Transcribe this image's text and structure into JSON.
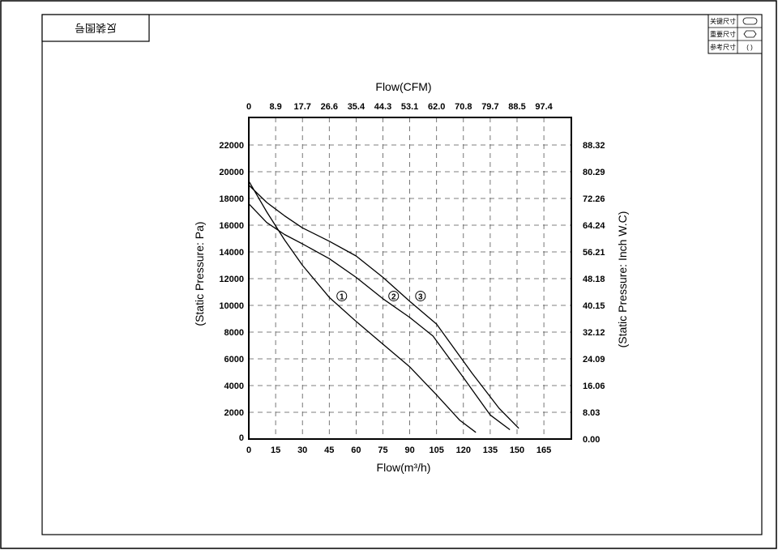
{
  "drawing_stamp": "反装图号",
  "title_block": [
    {
      "label": "关键尺寸",
      "symbol": "oval"
    },
    {
      "label": "重要尺寸",
      "symbol": "hexagon"
    },
    {
      "label": "参考尺寸",
      "symbol": "( )"
    }
  ],
  "chart_data": {
    "type": "line",
    "xlabel": "Flow(m³/h)",
    "x2label": "Flow(CFM)",
    "ylabel": "(Static Pressure: Pa)",
    "y2label": "(Static Pressure: Inch W.C)",
    "xlim": [
      0,
      180
    ],
    "ylim": [
      0,
      22000
    ],
    "grid": true,
    "x_ticks": [
      "0",
      "15",
      "30",
      "45",
      "60",
      "75",
      "90",
      "105",
      "120",
      "135",
      "150",
      "165"
    ],
    "x2_ticks": [
      "0",
      "8.9",
      "17.7",
      "26.6",
      "35.4",
      "44.3",
      "53.1",
      "62.0",
      "70.8",
      "79.7",
      "88.5",
      "97.4"
    ],
    "y_ticks": [
      "0",
      "2000",
      "4000",
      "6000",
      "8000",
      "10000",
      "12000",
      "14000",
      "16000",
      "18000",
      "20000",
      "22000"
    ],
    "y2_ticks": [
      "0.00",
      "8.03",
      "16.06",
      "24.09",
      "32.12",
      "40.15",
      "48.18",
      "56.21",
      "64.24",
      "72.26",
      "80.29",
      "88.32"
    ],
    "series": [
      {
        "name": "①",
        "label_at": [
          52,
          10700
        ],
        "x": [
          0,
          10,
          20,
          30,
          45,
          60,
          75,
          90,
          105,
          118,
          127
        ],
        "y": [
          19300,
          17000,
          14900,
          13000,
          10600,
          8800,
          7100,
          5400,
          3300,
          1400,
          500
        ]
      },
      {
        "name": "②",
        "label_at": [
          81,
          10700
        ],
        "x": [
          0,
          10,
          20,
          30,
          45,
          60,
          75,
          90,
          103,
          120,
          135,
          146
        ],
        "y": [
          17600,
          16200,
          15300,
          14600,
          13500,
          12100,
          10500,
          9100,
          7700,
          4600,
          1800,
          700
        ]
      },
      {
        "name": "③",
        "label_at": [
          96,
          10700
        ],
        "x": [
          0,
          10,
          20,
          30,
          45,
          60,
          75,
          90,
          105,
          125,
          140,
          151
        ],
        "y": [
          19000,
          17700,
          16700,
          15800,
          14800,
          13700,
          12100,
          10300,
          8600,
          4900,
          2300,
          800
        ]
      }
    ]
  }
}
